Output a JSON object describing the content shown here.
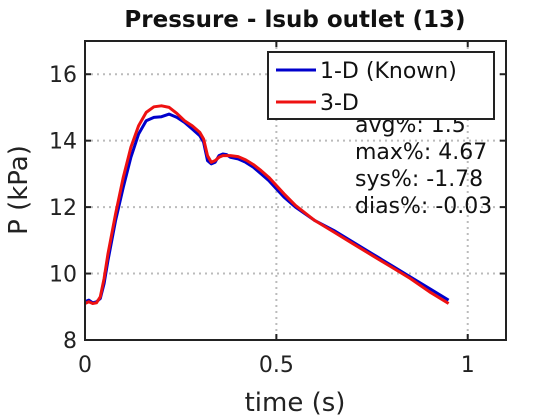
{
  "chart_data": {
    "type": "line",
    "title": "Pressure - lsub outlet (13)",
    "xlabel": "time (s)",
    "ylabel": "P (kPa)",
    "xlim": [
      0,
      1.1
    ],
    "ylim": [
      8,
      17
    ],
    "xticks": [
      0,
      0.5,
      1
    ],
    "xtick_labels": [
      "0",
      "0.5",
      "1"
    ],
    "yticks": [
      8,
      10,
      12,
      14,
      16
    ],
    "ytick_labels": [
      "8",
      "10",
      "12",
      "14",
      "16"
    ],
    "grid": true,
    "legend_position": "top-right",
    "series": [
      {
        "name": "1-D (Known)",
        "color": "#0000cc",
        "x": [
          0.0,
          0.01,
          0.02,
          0.03,
          0.04,
          0.05,
          0.06,
          0.08,
          0.1,
          0.12,
          0.14,
          0.16,
          0.18,
          0.2,
          0.22,
          0.24,
          0.26,
          0.28,
          0.3,
          0.31,
          0.32,
          0.33,
          0.34,
          0.35,
          0.36,
          0.37,
          0.38,
          0.4,
          0.42,
          0.44,
          0.46,
          0.48,
          0.5,
          0.52,
          0.55,
          0.6,
          0.65,
          0.7,
          0.75,
          0.8,
          0.85,
          0.9,
          0.95
        ],
        "y": [
          9.15,
          9.2,
          9.12,
          9.15,
          9.25,
          9.7,
          10.4,
          11.6,
          12.6,
          13.5,
          14.2,
          14.6,
          14.7,
          14.72,
          14.8,
          14.7,
          14.55,
          14.35,
          14.15,
          13.95,
          13.4,
          13.3,
          13.35,
          13.55,
          13.6,
          13.58,
          13.5,
          13.45,
          13.35,
          13.2,
          13.0,
          12.8,
          12.55,
          12.3,
          12.0,
          11.6,
          11.3,
          10.95,
          10.6,
          10.25,
          9.9,
          9.55,
          9.2
        ]
      },
      {
        "name": "3-D",
        "color": "#ee1111",
        "x": [
          0.0,
          0.01,
          0.02,
          0.03,
          0.04,
          0.05,
          0.06,
          0.08,
          0.1,
          0.12,
          0.14,
          0.16,
          0.18,
          0.2,
          0.22,
          0.24,
          0.26,
          0.28,
          0.3,
          0.31,
          0.32,
          0.33,
          0.34,
          0.35,
          0.36,
          0.37,
          0.38,
          0.4,
          0.42,
          0.44,
          0.46,
          0.48,
          0.5,
          0.52,
          0.55,
          0.6,
          0.65,
          0.7,
          0.75,
          0.8,
          0.85,
          0.9,
          0.95
        ],
        "y": [
          9.1,
          9.15,
          9.1,
          9.12,
          9.3,
          9.85,
          10.6,
          11.8,
          12.9,
          13.8,
          14.45,
          14.85,
          15.02,
          15.05,
          15.0,
          14.82,
          14.6,
          14.45,
          14.25,
          14.05,
          13.55,
          13.35,
          13.4,
          13.5,
          13.55,
          13.55,
          13.55,
          13.52,
          13.42,
          13.28,
          13.1,
          12.9,
          12.65,
          12.4,
          12.05,
          11.6,
          11.25,
          10.9,
          10.55,
          10.2,
          9.85,
          9.45,
          9.1
        ]
      }
    ],
    "annotations": [
      "avg%: 1.5",
      "max%: 4.67",
      "sys%: -1.78",
      "dias%: -0.03"
    ]
  }
}
